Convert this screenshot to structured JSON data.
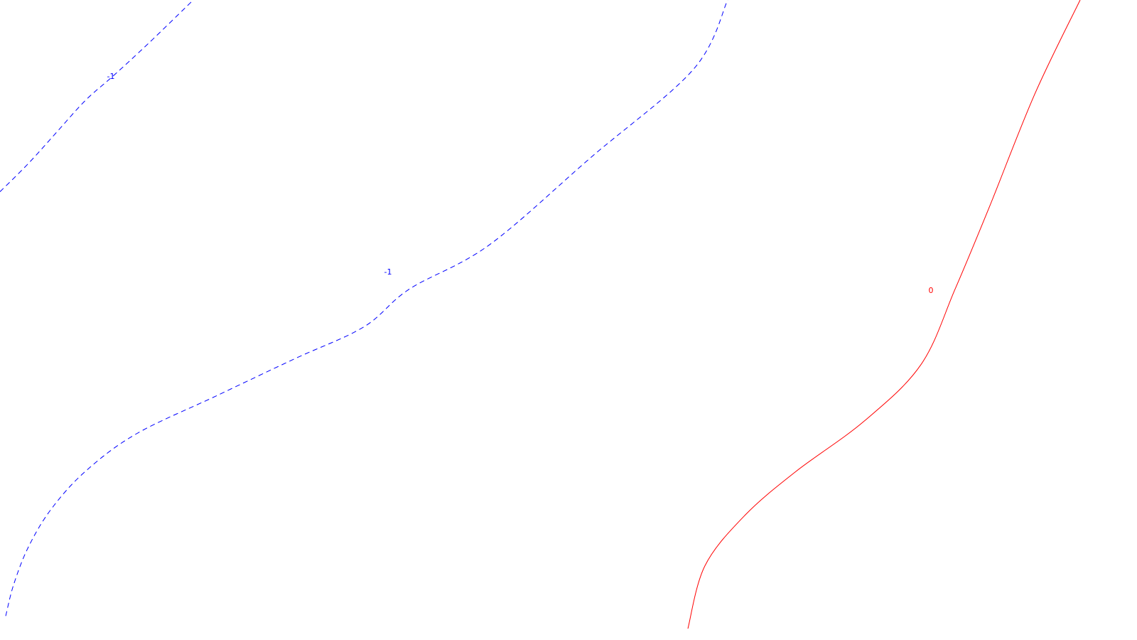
{
  "chart_data": {
    "type": "contour",
    "title": "",
    "xlabel": "",
    "ylabel": "",
    "grid": false,
    "legend": "none",
    "levels": [
      {
        "level_label": "-1",
        "style": "dashed",
        "color": "#0000ff",
        "lines": [
          {
            "label_text": "-1",
            "points": [
              [
                0.0,
                0.695
              ],
              [
                0.025,
                0.74
              ],
              [
                0.05,
                0.79
              ],
              [
                0.075,
                0.84
              ],
              [
                0.1,
                0.88
              ],
              [
                0.13,
                0.93
              ],
              [
                0.17,
                1.0
              ]
            ]
          },
          {
            "label_text": "-1",
            "points": [
              [
                0.005,
                0.02
              ],
              [
                0.012,
                0.07
              ],
              [
                0.025,
                0.13
              ],
              [
                0.045,
                0.19
              ],
              [
                0.075,
                0.25
              ],
              [
                0.12,
                0.31
              ],
              [
                0.19,
                0.37
              ],
              [
                0.26,
                0.43
              ],
              [
                0.32,
                0.48
              ],
              [
                0.36,
                0.54
              ],
              [
                0.43,
                0.61
              ],
              [
                0.52,
                0.75
              ],
              [
                0.61,
                0.89
              ],
              [
                0.64,
                1.0
              ]
            ]
          }
        ]
      },
      {
        "level_label": "0",
        "style": "solid",
        "color": "#ff0000",
        "lines": [
          {
            "label_text": "0",
            "points": [
              [
                0.605,
                0.0
              ],
              [
                0.62,
                0.1
              ],
              [
                0.655,
                0.18
              ],
              [
                0.7,
                0.25
              ],
              [
                0.76,
                0.33
              ],
              [
                0.81,
                0.42
              ],
              [
                0.84,
                0.54
              ],
              [
                0.87,
                0.67
              ],
              [
                0.91,
                0.85
              ],
              [
                0.95,
                1.0
              ]
            ]
          }
        ]
      }
    ]
  }
}
